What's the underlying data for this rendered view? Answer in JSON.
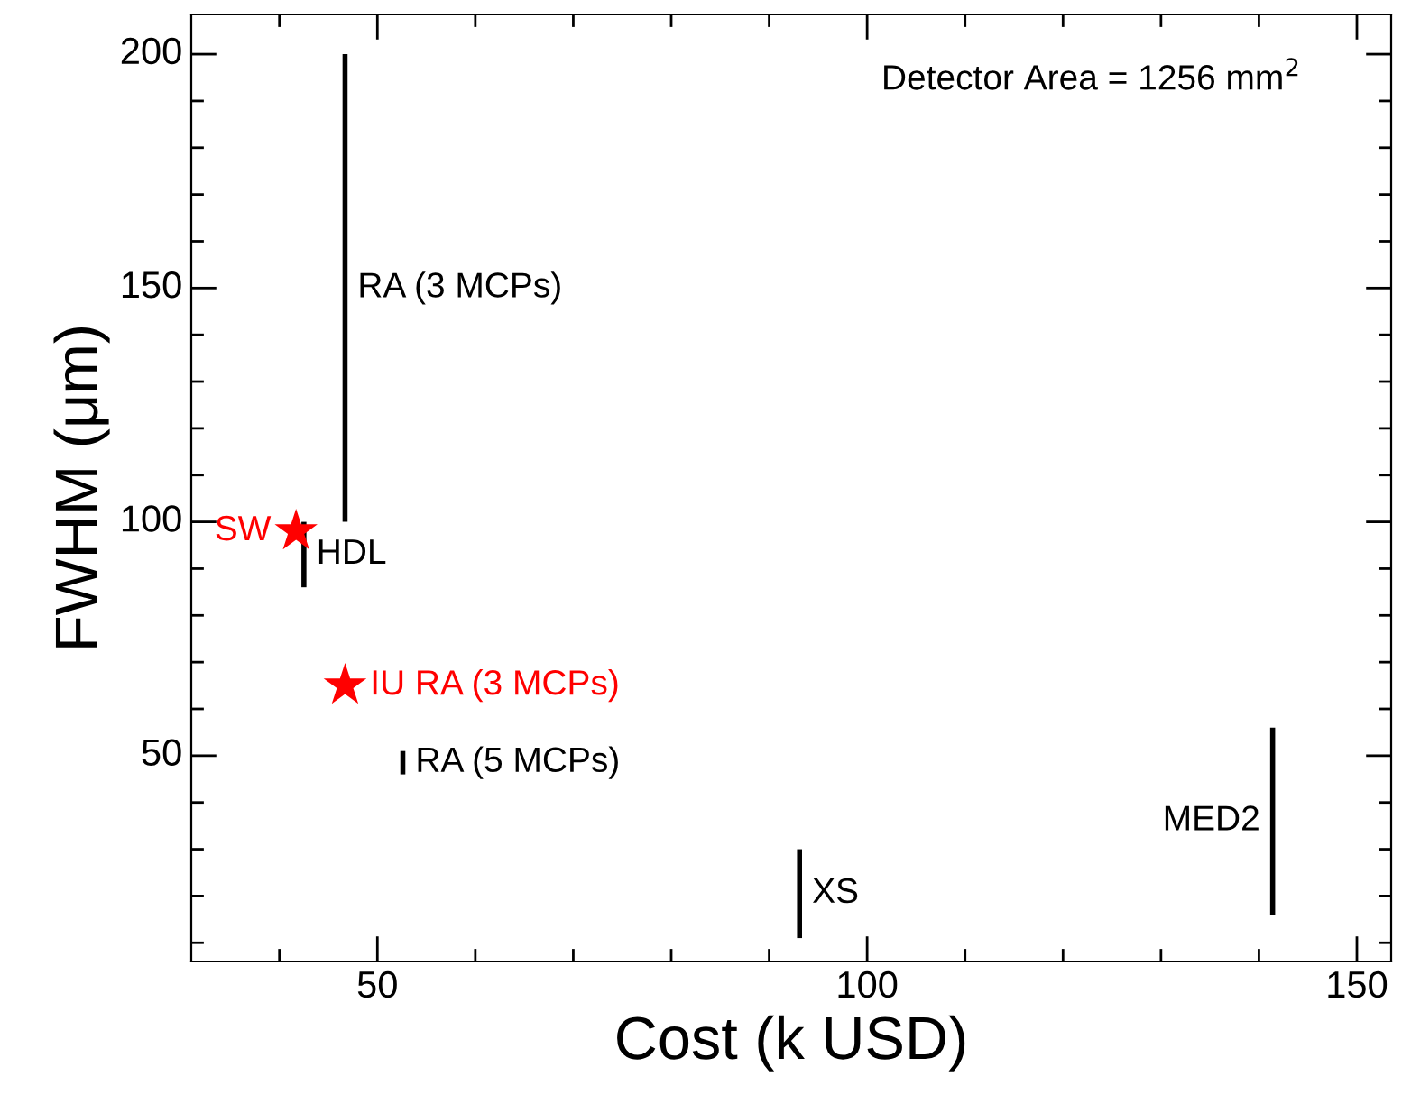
{
  "chart_data": {
    "type": "line",
    "xlabel": "Cost (k USD)",
    "ylabel": "FWHM (μm)",
    "annotations": [
      "Detector Area = 1256 mm$^{2}$"
    ],
    "xlim": [
      31,
      153.5
    ],
    "ylim": [
      6,
      208.5
    ],
    "xticks": [
      {
        "value": 40,
        "label": null
      },
      50,
      {
        "value": 60,
        "label": null
      },
      {
        "value": 70,
        "label": null
      },
      {
        "value": 80,
        "label": null
      },
      {
        "value": 90,
        "label": null
      },
      100,
      {
        "value": 110,
        "label": null
      },
      {
        "value": 120,
        "label": null
      },
      {
        "value": 130,
        "label": null
      },
      {
        "value": 140,
        "label": null
      },
      150
    ],
    "yticks": [
      {
        "value": 10,
        "label": null
      },
      {
        "value": 20,
        "label": null
      },
      {
        "value": 30,
        "label": null
      },
      {
        "value": 40,
        "label": null
      },
      50,
      {
        "value": 60,
        "label": null
      },
      {
        "value": 70,
        "label": null
      },
      {
        "value": 80,
        "label": null
      },
      {
        "value": 90,
        "label": null
      },
      100,
      {
        "value": 110,
        "label": null
      },
      {
        "value": 120,
        "label": null
      },
      {
        "value": 130,
        "label": null
      },
      {
        "value": 140,
        "label": null
      },
      150,
      {
        "value": 160,
        "label": null
      },
      {
        "value": 170,
        "label": null
      },
      {
        "value": 180,
        "label": null
      },
      {
        "value": 190,
        "label": null
      },
      200
    ],
    "grid": false,
    "legend": false,
    "marker": "none",
    "line_style": "solid",
    "series": [
      {
        "name": "RA (3 MCPs)",
        "color": "#000000",
        "x": [
          46.7,
          46.7
        ],
        "values": [
          100,
          200
        ]
      },
      {
        "name": "HDL",
        "color": "#000000",
        "x": [
          42.5,
          42.5
        ],
        "values": [
          86,
          100
        ]
      },
      {
        "name": "RA (5 MCPs)",
        "color": "#000000",
        "x": [
          52.6,
          52.6
        ],
        "values": [
          46,
          51
        ]
      },
      {
        "name": "XS",
        "color": "#000000",
        "x": [
          93.1,
          93.1
        ],
        "values": [
          11,
          30
        ]
      },
      {
        "name": "MED2",
        "color": "#000000",
        "x": [
          141.4,
          141.4
        ],
        "values": [
          16,
          56
        ]
      },
      {
        "name": "SW",
        "type": "scatter",
        "marker": "star",
        "color": "#ff0000",
        "x": [
          41.7
        ],
        "values": [
          98
        ]
      },
      {
        "name": "IU RA (3 MCPs)",
        "type": "scatter",
        "marker": "star",
        "color": "#ff0000",
        "x": [
          46.7
        ],
        "values": [
          65
        ]
      }
    ]
  }
}
